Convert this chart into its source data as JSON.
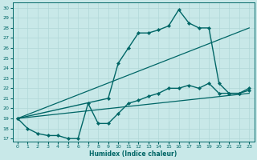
{
  "xlabel": "Humidex (Indice chaleur)",
  "bg_color": "#c8e8e8",
  "grid_color": "#b0d8d8",
  "line_color": "#006666",
  "xlim": [
    -0.5,
    23.5
  ],
  "ylim": [
    16.7,
    30.5
  ],
  "xticks": [
    0,
    1,
    2,
    3,
    4,
    5,
    6,
    7,
    8,
    9,
    10,
    11,
    12,
    13,
    14,
    15,
    16,
    17,
    18,
    19,
    20,
    21,
    22,
    23
  ],
  "yticks": [
    17,
    18,
    19,
    20,
    21,
    22,
    23,
    24,
    25,
    26,
    27,
    28,
    29,
    30
  ],
  "series": [
    {
      "x": [
        0,
        9,
        10,
        11,
        12,
        13,
        14,
        15,
        16,
        17,
        18,
        19,
        20,
        21,
        22,
        23
      ],
      "y": [
        19,
        21,
        24.5,
        26,
        27.5,
        27.5,
        27.8,
        28.2,
        29.8,
        28.5,
        28.0,
        28.0,
        22.5,
        21.5,
        21.5,
        22.0
      ],
      "marker": "D",
      "markersize": 2.2,
      "linewidth": 1.0
    },
    {
      "x": [
        0,
        23
      ],
      "y": [
        19.0,
        28.0
      ],
      "marker": null,
      "markersize": 0,
      "linewidth": 0.9
    },
    {
      "x": [
        0,
        1,
        2,
        3,
        4,
        5,
        6,
        7,
        8,
        9,
        10,
        11,
        12,
        13,
        14,
        15,
        16,
        17,
        18,
        19,
        20,
        21,
        22,
        23
      ],
      "y": [
        19,
        18,
        17.5,
        17.3,
        17.3,
        17.0,
        17.0,
        20.5,
        18.5,
        18.5,
        19.5,
        20.5,
        20.8,
        21.2,
        21.5,
        22.0,
        22.0,
        22.3,
        22.0,
        22.5,
        21.5,
        21.5,
        21.5,
        21.8
      ],
      "marker": "D",
      "markersize": 2.2,
      "linewidth": 1.0
    },
    {
      "x": [
        0,
        23
      ],
      "y": [
        19.0,
        21.5
      ],
      "marker": null,
      "markersize": 0,
      "linewidth": 0.9
    }
  ]
}
